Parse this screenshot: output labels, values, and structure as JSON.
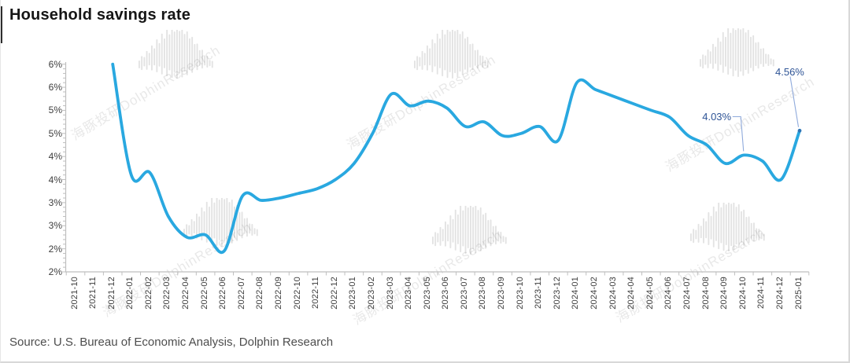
{
  "title": "Household savings rate",
  "source": "Source: U.S. Bureau of Economic Analysis, Dolphin Research",
  "watermark": {
    "text_cn": "海豚投研",
    "text_en": "DolphinResearch",
    "icon": "dolphin-soundwave-bars"
  },
  "colors": {
    "line": "#29A8E0",
    "line_end_marker": "#2E75B6",
    "axis": "#BFBFBF",
    "tick_label": "#3D3D3D",
    "annotation_text": "#2E5496",
    "annotation_connector": "#8FAADC",
    "title_text": "#161616",
    "source_text": "#4D4D4D",
    "watermark": "#E3E3E3"
  },
  "chart_data": {
    "type": "line",
    "title": "Household savings rate",
    "xlabel": "",
    "ylabel": "",
    "grid": false,
    "legend": false,
    "line_style": "smooth",
    "x": [
      "2021-10",
      "2021-11",
      "2021-12",
      "2022-01",
      "2022-02",
      "2022-03",
      "2022-04",
      "2022-05",
      "2022-06",
      "2022-07",
      "2022-08",
      "2022-09",
      "2022-10",
      "2022-11",
      "2022-12",
      "2023-01",
      "2023-02",
      "2023-03",
      "2023-04",
      "2023-05",
      "2023-06",
      "2023-07",
      "2023-08",
      "2023-09",
      "2023-10",
      "2023-11",
      "2023-12",
      "2024-01",
      "2024-02",
      "2024-03",
      "2024-04",
      "2024-05",
      "2024-06",
      "2024-07",
      "2024-08",
      "2024-09",
      "2024-10",
      "2024-11",
      "2024-12",
      "2025-01"
    ],
    "series": [
      {
        "name": "Household savings rate (%)",
        "values": [
          null,
          null,
          6.0,
          3.6,
          3.65,
          2.7,
          2.25,
          2.3,
          1.95,
          3.15,
          3.05,
          3.1,
          3.2,
          3.3,
          3.5,
          3.85,
          4.5,
          5.35,
          5.1,
          5.2,
          5.05,
          4.65,
          4.75,
          4.45,
          4.5,
          4.65,
          4.35,
          5.6,
          5.45,
          5.3,
          5.15,
          5.0,
          4.85,
          4.45,
          4.25,
          3.85,
          4.03,
          3.9,
          3.5,
          4.56
        ]
      }
    ],
    "y_axis": {
      "min": 1.5,
      "max": 6.0,
      "step": 0.5,
      "tick_values_top_to_bottom": [
        6.0,
        5.5,
        5.0,
        4.5,
        4.0,
        3.5,
        3.0,
        2.5,
        2.0,
        1.5
      ],
      "tick_labels_top_to_bottom": [
        "6%",
        "6%",
        "5%",
        "5%",
        "4%",
        "4%",
        "3%",
        "3%",
        "2%",
        "2%"
      ],
      "format": "percent rounded to integer",
      "minor_tick_step": 0.1
    },
    "annotations": [
      {
        "label": "4.03%",
        "month": "2024-10",
        "value": 4.03
      },
      {
        "label": "4.56%",
        "month": "2025-01",
        "value": 4.56
      }
    ]
  }
}
